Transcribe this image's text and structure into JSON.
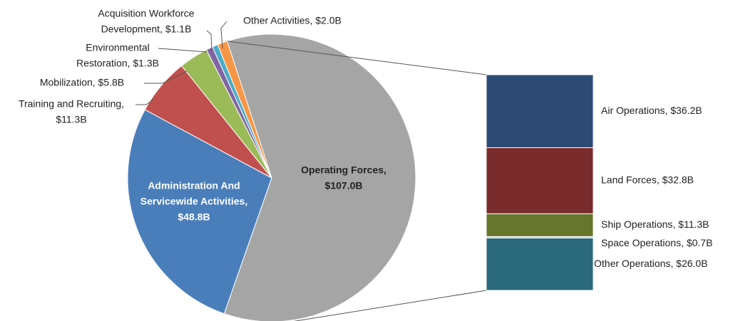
{
  "chart_data": {
    "type": "pie",
    "labels": [
      [
        "Operating Forces,",
        "$107.0B"
      ],
      [
        "Administration And",
        "Servicewide Activities,",
        "$48.8B"
      ],
      [
        "Training and Recruiting,",
        "$11.3B"
      ],
      [
        "Mobilization, $5.8B"
      ],
      [
        "Environmental",
        "Restoration, $1.3B"
      ],
      [
        "Acquisition Workforce",
        "Development, $1.1B"
      ],
      [
        "Other Activities, $2.0B"
      ]
    ],
    "values": [
      107.0,
      48.8,
      11.3,
      5.8,
      1.3,
      1.1,
      2.0
    ],
    "colors": [
      "#a5a5a5",
      "#4a7ebb",
      "#c0504d",
      "#9bbb59",
      "#8064a2",
      "#4bacc6",
      "#f79646"
    ],
    "breakdown": {
      "type": "stacked-bar",
      "labels": [
        "Air Operations, $36.2B",
        "Land Forces, $32.8B",
        "Ship Operations, $11.3B",
        "Space Operations, $0.7B",
        "Other Operations, $26.0B"
      ],
      "values": [
        36.2,
        32.8,
        11.3,
        0.7,
        26.0
      ],
      "colors": [
        "#2c4a74",
        "#7a2b2b",
        "#66762c",
        "#b8c3d8",
        "#2a6a7c"
      ]
    }
  }
}
